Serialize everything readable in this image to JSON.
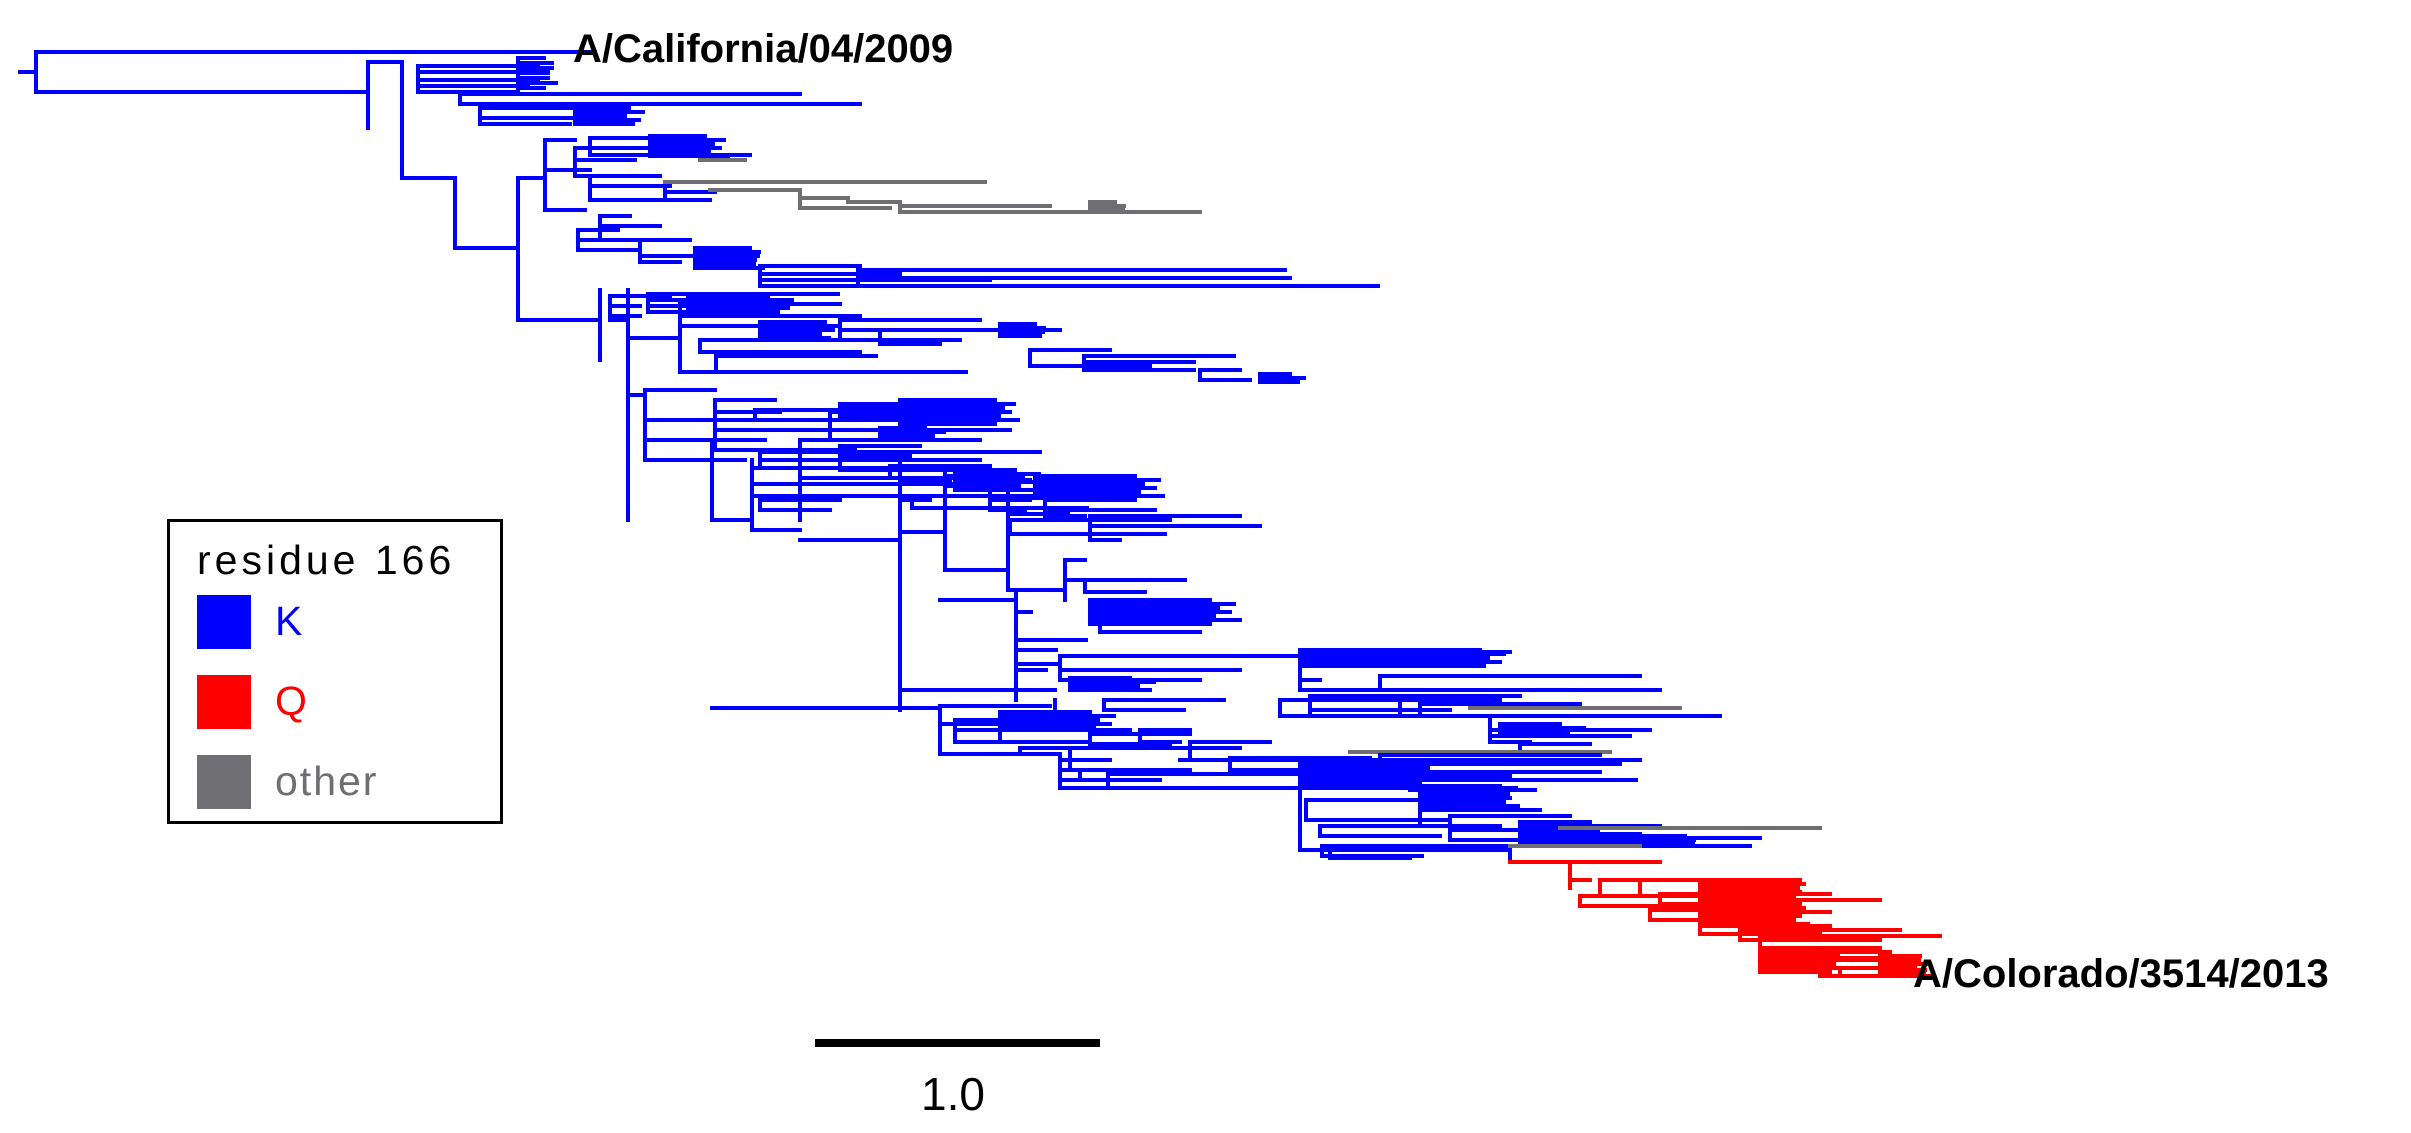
{
  "tree": {
    "tip_labels": {
      "top": "A/California/04/2009",
      "bottom": "A/Colorado/3514/2013"
    },
    "scale_bar": {
      "length": 1.0,
      "label": "1.0"
    }
  },
  "legend": {
    "title": "residue 166",
    "items": [
      {
        "key": "k",
        "label": "K",
        "color": "#0000ff"
      },
      {
        "key": "q",
        "label": "Q",
        "color": "#ff0000"
      },
      {
        "key": "other",
        "label": "other",
        "color": "#6e6e73"
      }
    ]
  },
  "colors": {
    "K": "#0000ff",
    "Q": "#ff0000",
    "other": "#6e6e73",
    "text": "#000000"
  }
}
